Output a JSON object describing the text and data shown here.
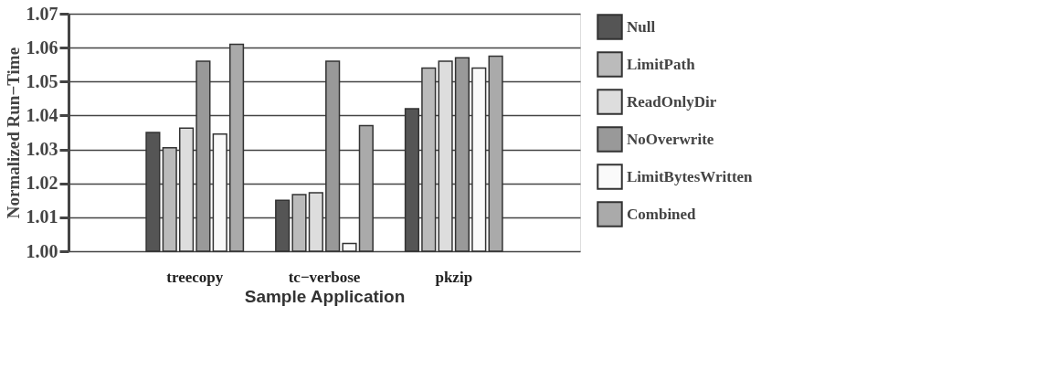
{
  "chart_data": {
    "type": "bar",
    "xlabel": "Sample Application",
    "ylabel": "Normalized Run−Time",
    "categories": [
      "treecopy",
      "tc−verbose",
      "pkzip"
    ],
    "series": [
      {
        "name": "Null",
        "color": "#555555",
        "values": [
          1.035,
          1.015,
          1.042
        ]
      },
      {
        "name": "LimitPath",
        "color": "#bbbbbb",
        "values": [
          1.0305,
          1.0167,
          1.054
        ]
      },
      {
        "name": "ReadOnlyDir",
        "color": "#dddddd",
        "values": [
          1.0363,
          1.0172,
          1.056
        ]
      },
      {
        "name": "NoOverwrite",
        "color": "#999999",
        "values": [
          1.056,
          1.056,
          1.057
        ]
      },
      {
        "name": "LimitBytesWritten",
        "color": "#fafafa",
        "values": [
          1.0345,
          1.0023,
          1.054
        ]
      },
      {
        "name": "Combined",
        "color": "#aaaaaa",
        "values": [
          1.061,
          1.037,
          1.0575
        ]
      }
    ],
    "ylim": [
      1.0,
      1.07
    ],
    "yticks": [
      {
        "value": 1.0,
        "label": "1.00"
      },
      {
        "value": 1.01,
        "label": "1.01"
      },
      {
        "value": 1.02,
        "label": "1.02"
      },
      {
        "value": 1.03,
        "label": "1.03"
      },
      {
        "value": 1.04,
        "label": "1.04"
      },
      {
        "value": 1.05,
        "label": "1.05"
      },
      {
        "value": 1.06,
        "label": "1.06"
      },
      {
        "value": 1.07,
        "label": "1.07"
      }
    ],
    "grid": "y",
    "legend": "right"
  }
}
